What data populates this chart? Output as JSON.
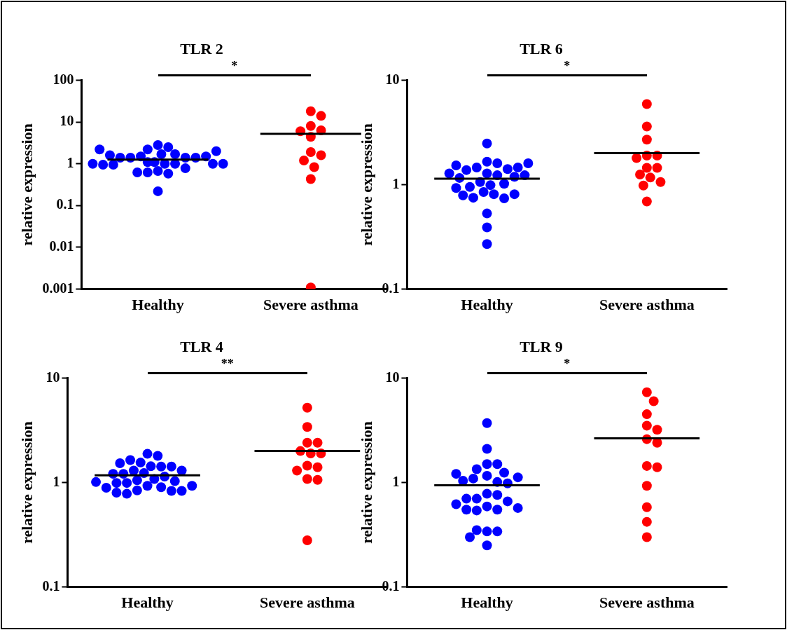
{
  "chart_data": [
    {
      "type": "scatter",
      "title": "TLR 2",
      "ylabel": "relative expression",
      "categories": [
        "Healthy",
        "Severe asthma"
      ],
      "log": "y",
      "ylim": [
        0.001,
        100
      ],
      "yticks": [
        0.001,
        0.01,
        0.1,
        1,
        10,
        100
      ],
      "grid": false,
      "legend": false,
      "marker": "circle",
      "annotations": [
        "*"
      ],
      "series": [
        {
          "color": "#0000ff",
          "x": [
            "Healthy",
            "Healthy",
            "Healthy",
            "Healthy",
            "Healthy",
            "Healthy",
            "Healthy",
            "Healthy",
            "Healthy",
            "Healthy",
            "Healthy",
            "Healthy",
            "Healthy",
            "Healthy",
            "Healthy",
            "Healthy",
            "Healthy",
            "Healthy",
            "Healthy",
            "Healthy",
            "Healthy",
            "Healthy",
            "Healthy",
            "Healthy",
            "Healthy",
            "Healthy",
            "Healthy",
            "Healthy",
            "Healthy"
          ],
          "values": [
            2.8,
            2.5,
            2.2,
            1.7,
            1.7,
            1.5,
            1.4,
            1.4,
            1.4,
            1.4,
            1.5,
            1.6,
            2.0,
            2.2,
            1.1,
            1.0,
            1.0,
            1.0,
            0.95,
            0.67,
            0.62,
            0.58,
            0.62,
            0.78,
            0.95,
            1.0,
            1.0,
            1.1,
            0.22
          ]
        },
        {
          "color": "#ff0000",
          "x": [
            "Severe asthma",
            "Severe asthma",
            "Severe asthma",
            "Severe asthma",
            "Severe asthma",
            "Severe asthma",
            "Severe asthma",
            "Severe asthma",
            "Severe asthma",
            "Severe asthma",
            "Severe asthma",
            "Severe asthma"
          ],
          "values": [
            18,
            14,
            8,
            6.3,
            6,
            4.4,
            1.9,
            1.6,
            1.2,
            0.83,
            0.43,
            0.0011
          ]
        },
        {
          "type": "box",
          "color": "#000000",
          "boxes": [
            {
              "low": 1.26,
              "q1": 1.26,
              "median": 1.26,
              "q3": 1.26,
              "high": 1.26
            },
            {
              "low": 5.2,
              "q1": 5.2,
              "median": 5.2,
              "q3": 5.2,
              "high": 5.2
            }
          ]
        }
      ]
    },
    {
      "type": "scatter",
      "title": "TLR 6",
      "ylabel": "relative expression",
      "categories": [
        "Healthy",
        "Severe asthma"
      ],
      "log": "y",
      "ylim": [
        0.1,
        10
      ],
      "yticks": [
        0.1,
        1,
        10
      ],
      "grid": false,
      "legend": false,
      "marker": "circle",
      "annotations": [
        "*"
      ],
      "series": [
        {
          "color": "#0000ff",
          "x": [
            "Healthy",
            "Healthy",
            "Healthy",
            "Healthy",
            "Healthy",
            "Healthy",
            "Healthy",
            "Healthy",
            "Healthy",
            "Healthy",
            "Healthy",
            "Healthy",
            "Healthy",
            "Healthy",
            "Healthy",
            "Healthy",
            "Healthy",
            "Healthy",
            "Healthy",
            "Healthy",
            "Healthy",
            "Healthy",
            "Healthy",
            "Healthy",
            "Healthy",
            "Healthy",
            "Healthy",
            "Healthy",
            "Healthy"
          ],
          "values": [
            2.48,
            1.66,
            1.6,
            1.46,
            1.41,
            1.38,
            1.46,
            1.53,
            1.6,
            1.28,
            1.23,
            1.19,
            1.06,
            0.99,
            1.02,
            1.16,
            1.23,
            1.28,
            0.95,
            0.85,
            0.81,
            0.75,
            0.74,
            0.79,
            0.81,
            0.93,
            0.53,
            0.39,
            0.27
          ]
        },
        {
          "color": "#ff0000",
          "x": [
            "Severe asthma",
            "Severe asthma",
            "Severe asthma",
            "Severe asthma",
            "Severe asthma",
            "Severe asthma",
            "Severe asthma",
            "Severe asthma",
            "Severe asthma",
            "Severe asthma",
            "Severe asthma",
            "Severe asthma",
            "Severe asthma"
          ],
          "values": [
            5.9,
            3.6,
            2.7,
            1.9,
            1.9,
            1.8,
            1.45,
            1.45,
            1.25,
            1.17,
            1.06,
            0.98,
            0.69
          ]
        },
        {
          "type": "box",
          "color": "#000000",
          "boxes": [
            {
              "low": 1.14,
              "q1": 1.14,
              "median": 1.14,
              "q3": 1.14,
              "high": 1.14
            },
            {
              "low": 2.0,
              "q1": 2.0,
              "median": 2.0,
              "q3": 2.0,
              "high": 2.0
            }
          ]
        }
      ]
    },
    {
      "type": "scatter",
      "title": "TLR 4",
      "ylabel": "relative expression",
      "categories": [
        "Healthy",
        "Severe asthma"
      ],
      "log": "y",
      "ylim": [
        0.1,
        10
      ],
      "yticks": [
        0.1,
        1,
        10
      ],
      "grid": false,
      "legend": false,
      "marker": "circle",
      "annotations": [
        "**"
      ],
      "series": [
        {
          "color": "#0000ff",
          "x": [
            "Healthy",
            "Healthy",
            "Healthy",
            "Healthy",
            "Healthy",
            "Healthy",
            "Healthy",
            "Healthy",
            "Healthy",
            "Healthy",
            "Healthy",
            "Healthy",
            "Healthy",
            "Healthy",
            "Healthy",
            "Healthy",
            "Healthy",
            "Healthy",
            "Healthy",
            "Healthy",
            "Healthy",
            "Healthy",
            "Healthy",
            "Healthy",
            "Healthy",
            "Healthy",
            "Healthy",
            "Healthy",
            "Healthy"
          ],
          "values": [
            1.88,
            1.8,
            1.55,
            1.64,
            1.43,
            1.42,
            1.42,
            1.53,
            1.3,
            1.3,
            1.23,
            1.21,
            1.08,
            1.05,
            1.14,
            1.21,
            1.03,
            0.99,
            0.93,
            0.9,
            0.84,
            0.83,
            0.78,
            0.8,
            0.83,
            0.89,
            0.93,
            0.99,
            1.01
          ]
        },
        {
          "color": "#ff0000",
          "x": [
            "Severe asthma",
            "Severe asthma",
            "Severe asthma",
            "Severe asthma",
            "Severe asthma",
            "Severe asthma",
            "Severe asthma",
            "Severe asthma",
            "Severe asthma",
            "Severe asthma",
            "Severe asthma",
            "Severe asthma",
            "Severe asthma"
          ],
          "values": [
            5.2,
            3.4,
            2.4,
            2.4,
            2.0,
            1.9,
            1.9,
            1.45,
            1.4,
            1.3,
            1.08,
            1.06,
            0.28
          ]
        },
        {
          "type": "box",
          "color": "#000000",
          "boxes": [
            {
              "low": 1.17,
              "q1": 1.17,
              "median": 1.17,
              "q3": 1.17,
              "high": 1.17
            },
            {
              "low": 2.0,
              "q1": 2.0,
              "median": 2.0,
              "q3": 2.0,
              "high": 2.0
            }
          ]
        }
      ]
    },
    {
      "type": "scatter",
      "title": "TLR 9",
      "ylabel": "relative expression",
      "categories": [
        "Healthy",
        "Severe asthma"
      ],
      "log": "y",
      "ylim": [
        0.1,
        10
      ],
      "yticks": [
        0.1,
        1,
        10
      ],
      "grid": false,
      "legend": false,
      "marker": "circle",
      "annotations": [
        "*"
      ],
      "series": [
        {
          "color": "#0000ff",
          "x": [
            "Healthy",
            "Healthy",
            "Healthy",
            "Healthy",
            "Healthy",
            "Healthy",
            "Healthy",
            "Healthy",
            "Healthy",
            "Healthy",
            "Healthy",
            "Healthy",
            "Healthy",
            "Healthy",
            "Healthy",
            "Healthy",
            "Healthy",
            "Healthy",
            "Healthy",
            "Healthy",
            "Healthy",
            "Healthy",
            "Healthy",
            "Healthy",
            "Healthy",
            "Healthy",
            "Healthy",
            "Healthy",
            "Healthy"
          ],
          "values": [
            3.7,
            2.1,
            1.5,
            1.5,
            1.34,
            1.24,
            1.16,
            1.09,
            1.01,
            0.98,
            1.04,
            1.12,
            1.21,
            0.78,
            0.76,
            0.7,
            0.66,
            0.59,
            0.55,
            0.54,
            0.55,
            0.57,
            0.62,
            0.7,
            0.34,
            0.34,
            0.35,
            0.3,
            0.25
          ]
        },
        {
          "color": "#ff0000",
          "x": [
            "Severe asthma",
            "Severe asthma",
            "Severe asthma",
            "Severe asthma",
            "Severe asthma",
            "Severe asthma",
            "Severe asthma",
            "Severe asthma",
            "Severe asthma",
            "Severe asthma",
            "Severe asthma",
            "Severe asthma",
            "Severe asthma"
          ],
          "values": [
            7.3,
            6.0,
            4.5,
            3.5,
            3.2,
            2.6,
            2.4,
            1.44,
            1.4,
            0.93,
            0.58,
            0.42,
            0.3
          ]
        },
        {
          "type": "box",
          "color": "#000000",
          "boxes": [
            {
              "low": 0.94,
              "q1": 0.94,
              "median": 0.94,
              "q3": 0.94,
              "high": 0.94
            },
            {
              "low": 2.65,
              "q1": 2.65,
              "median": 2.65,
              "q3": 2.65,
              "high": 2.65
            }
          ]
        }
      ]
    }
  ]
}
